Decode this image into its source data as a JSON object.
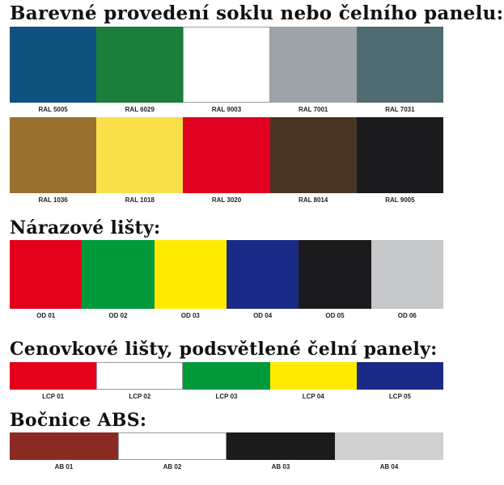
{
  "sections": [
    {
      "title": "Barevné provedení soklu nebo čelního panelu:",
      "rows": [
        [
          {
            "label": "RAL 5005",
            "color": "#10527f"
          },
          {
            "label": "RAL 6029",
            "color": "#1a7f3a"
          },
          {
            "label": "RAL 9003",
            "color": "#ffffff"
          },
          {
            "label": "RAL 7001",
            "color": "#9ea3a7"
          },
          {
            "label": "RAL 7031",
            "color": "#4d6b70"
          }
        ],
        [
          {
            "label": "RAL 1036",
            "color": "#98712f"
          },
          {
            "label": "RAL 1018",
            "color": "#f9e14b"
          },
          {
            "label": "RAL 3020",
            "color": "#e0001f"
          },
          {
            "label": "RAL 8014",
            "color": "#4a3525"
          },
          {
            "label": "RAL 9005",
            "color": "#1b1a1c"
          }
        ]
      ]
    },
    {
      "title": "Nárazové lišty:",
      "rows": [
        [
          {
            "label": "OD 01",
            "color": "#e2001a"
          },
          {
            "label": "OD 02",
            "color": "#009a3a"
          },
          {
            "label": "OD 03",
            "color": "#ffeb00"
          },
          {
            "label": "OD 04",
            "color": "#1a2b87"
          },
          {
            "label": "OD 05",
            "color": "#1b1a1c"
          },
          {
            "label": "OD 06",
            "color": "#c6c7c9"
          }
        ]
      ]
    },
    {
      "title": "Cenovkové lišty, podsvětlené čelní panely:",
      "rows": [
        [
          {
            "label": "LCP 01",
            "color": "#e2001a"
          },
          {
            "label": "LCP 02",
            "color": "#ffffff"
          },
          {
            "label": "LCP 03",
            "color": "#009a3a"
          },
          {
            "label": "LCP 04",
            "color": "#ffeb00"
          },
          {
            "label": "LCP 05",
            "color": "#1a2b87"
          }
        ]
      ]
    },
    {
      "title": "Bočnice ABS:",
      "rows": [
        [
          {
            "label": "AB 01",
            "color": "#8b2a23"
          },
          {
            "label": "AB 02",
            "color": "#ffffff"
          },
          {
            "label": "AB 03",
            "color": "#1b1a1c"
          },
          {
            "label": "AB 04",
            "color": "#cfd0d2"
          }
        ]
      ]
    }
  ]
}
